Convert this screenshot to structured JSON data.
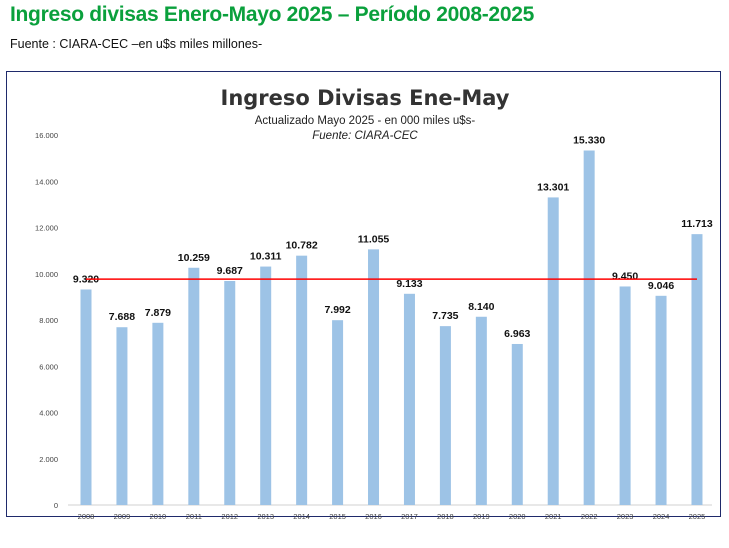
{
  "header": {
    "title": "Ingreso divisas Enero-Mayo 2025 – Período 2008-2025",
    "subtitle": "Fuente : CIARA-CEC –en u$s miles millones-"
  },
  "chart_data": {
    "type": "bar",
    "title": "Ingreso Divisas Ene-May",
    "subtitle": "Actualizado Mayo  2025 - en 000  miles u$s-",
    "source": "Fuente: CIARA-CEC",
    "categories": [
      "2008",
      "2009",
      "2010",
      "2011",
      "2012",
      "2013",
      "2014",
      "2015",
      "2016",
      "2017",
      "2018",
      "2019",
      "2020",
      "2021",
      "2022",
      "2023",
      "2024",
      "2025"
    ],
    "values": [
      9320,
      7688,
      7879,
      10259,
      9687,
      10311,
      10782,
      7992,
      11055,
      9133,
      7735,
      8140,
      6963,
      13301,
      15330,
      9450,
      9046,
      11713
    ],
    "value_labels": [
      "9.320",
      "7.688",
      "7.879",
      "10.259",
      "9.687",
      "10.311",
      "10.782",
      "7.992",
      "11.055",
      "9.133",
      "7.735",
      "8.140",
      "6.963",
      "13.301",
      "15.330",
      "9.450",
      "9.046",
      "11.713"
    ],
    "yticks": [
      0,
      2000,
      4000,
      6000,
      8000,
      10000,
      12000,
      14000,
      16000
    ],
    "ytick_labels": [
      "0",
      "2.000",
      "4.000",
      "6.000",
      "8.000",
      "10.000",
      "12.000",
      "14.000",
      "16.000"
    ],
    "ylim": [
      0,
      16000
    ],
    "average_line": 9766,
    "colors": {
      "bar": "#9dc3e6",
      "line": "#ff0000"
    }
  }
}
